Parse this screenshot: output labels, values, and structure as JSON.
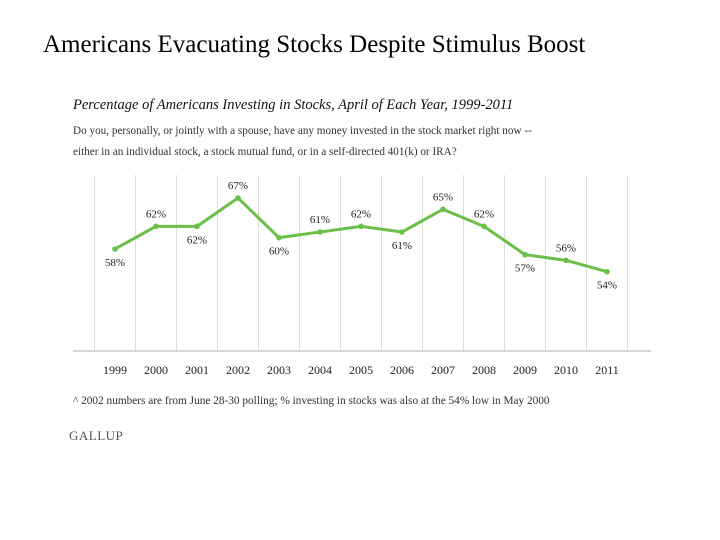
{
  "title": "Americans Evacuating Stocks Despite Stimulus Boost",
  "question_lines": [
    "Do you, personally, or jointly with a spouse, have any money invested in the stock market right now --",
    "either in an individual stock, a stock mutual fund, or in a self-directed 401(k) or IRA?"
  ],
  "footnote": "^ 2002 numbers are from June 28-30 polling; % investing in stocks was also at the 54% low in May 2000",
  "logo_text": "GALLUP",
  "colors": {
    "line": "#6cbf4a",
    "grid": "#dddddd",
    "axis": "#cccccc",
    "label": "#222222"
  },
  "chart_data": {
    "type": "line",
    "title": "Percentage of Americans Investing in Stocks, April of Each Year, 1999-2011",
    "categories": [
      "1999",
      "2000",
      "2001",
      "2002",
      "2003",
      "2004",
      "2005",
      "2006",
      "2007",
      "2008",
      "2009",
      "2010",
      "2011"
    ],
    "series": [
      {
        "values": [
          58,
          62,
          62,
          67,
          60,
          61,
          62,
          61,
          65,
          62,
          57,
          56,
          54
        ],
        "labels": [
          "58%",
          "62%",
          "62%",
          "67%",
          "60%",
          "61%",
          "62%",
          "61%",
          "65%",
          "62%",
          "57%",
          "56%",
          "54%"
        ],
        "label_positions": [
          "below",
          "above",
          "below",
          "above",
          "below",
          "above",
          "above",
          "below",
          "above",
          "above",
          "below",
          "above",
          "below"
        ]
      }
    ],
    "ylim": [
      30,
      70
    ],
    "grid": "vertical",
    "xlabel": "",
    "ylabel": ""
  }
}
